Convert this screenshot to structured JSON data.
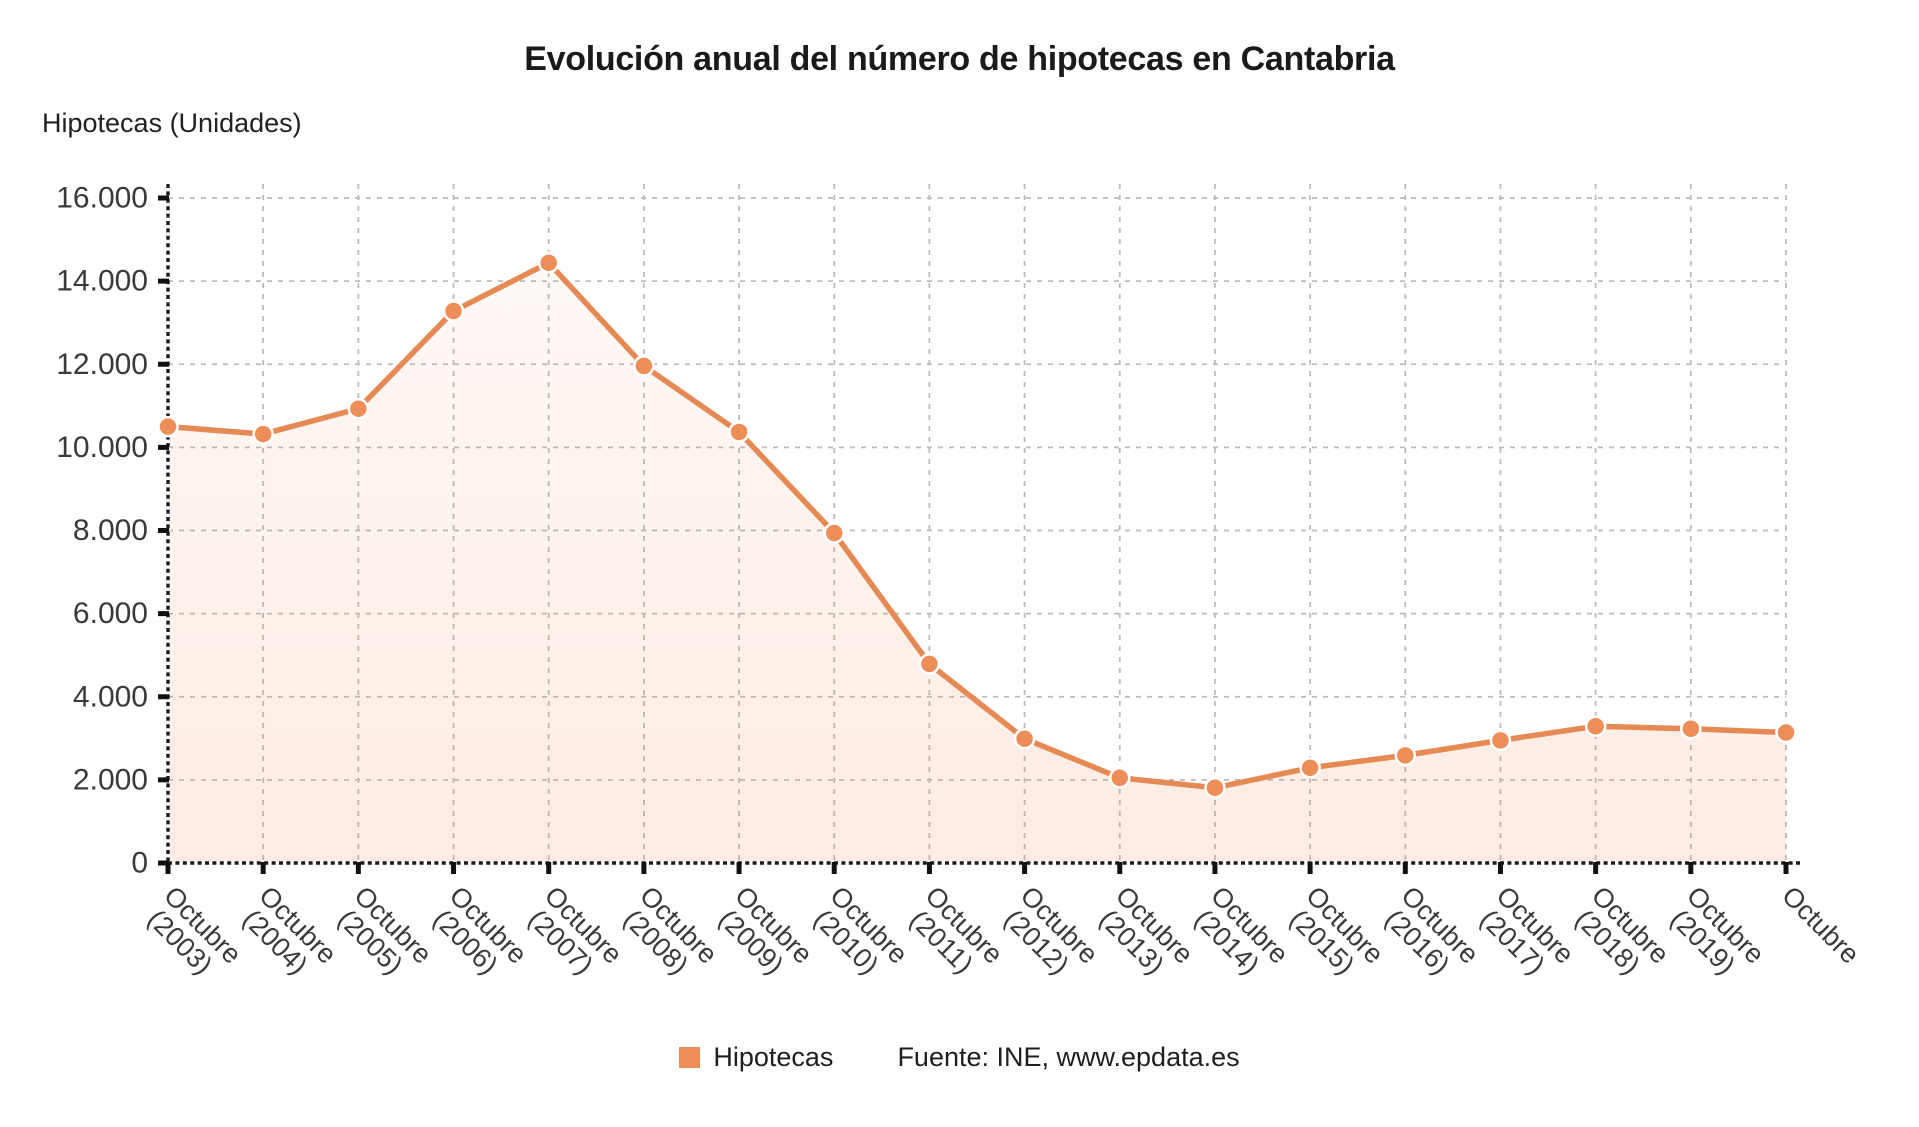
{
  "chart_data": {
    "type": "line",
    "title": "Evolución anual del número de hipotecas en Cantabria",
    "ylabel": "Hipotecas (Unidades)",
    "xlabel": "",
    "categories": [
      "Octubre (2003)",
      "Octubre (2004)",
      "Octubre (2005)",
      "Octubre (2006)",
      "Octubre (2007)",
      "Octubre (2008)",
      "Octubre (2009)",
      "Octubre (2010)",
      "Octubre (2011)",
      "Octubre (2012)",
      "Octubre (2013)",
      "Octubre (2014)",
      "Octubre (2015)",
      "Octubre (2016)",
      "Octubre (2017)",
      "Octubre (2018)",
      "Octubre (2019)",
      "Octubre"
    ],
    "x_tick_labels": [
      [
        "Octubre",
        "(2003)"
      ],
      [
        "Octubre",
        "(2004)"
      ],
      [
        "Octubre",
        "(2005)"
      ],
      [
        "Octubre",
        "(2006)"
      ],
      [
        "Octubre",
        "(2007)"
      ],
      [
        "Octubre",
        "(2008)"
      ],
      [
        "Octubre",
        "(2009)"
      ],
      [
        "Octubre",
        "(2010)"
      ],
      [
        "Octubre",
        "(2011)"
      ],
      [
        "Octubre",
        "(2012)"
      ],
      [
        "Octubre",
        "(2013)"
      ],
      [
        "Octubre",
        "(2014)"
      ],
      [
        "Octubre",
        "(2015)"
      ],
      [
        "Octubre",
        "(2016)"
      ],
      [
        "Octubre",
        "(2017)"
      ],
      [
        "Octubre",
        "(2018)"
      ],
      [
        "Octubre",
        "(2019)"
      ],
      [
        "Octubre"
      ]
    ],
    "series": [
      {
        "name": "Hipotecas",
        "values": [
          10500,
          10320,
          10930,
          13280,
          14440,
          11960,
          10370,
          7940,
          4790,
          2990,
          2050,
          1810,
          2290,
          2590,
          2950,
          3290,
          3230,
          3140
        ]
      }
    ],
    "ylim": [
      0,
      16000
    ],
    "y_tick_step": 2000,
    "y_tick_labels": [
      "0",
      "2.000",
      "4.000",
      "6.000",
      "8.000",
      "10.000",
      "12.000",
      "14.000",
      "16.000"
    ],
    "grid": true,
    "legend_position": "bottom",
    "source": "Fuente: INE, www.epdata.es",
    "colors": {
      "series": "#ED8E58",
      "line": "#E68A55",
      "area_top": "rgba(237,142,88,0.06)",
      "area_bottom": "rgba(237,142,88,0.17)",
      "grid": "#BBBBBB",
      "axis": "#1A1A1A",
      "tick_text": "#3A3A3A"
    }
  }
}
